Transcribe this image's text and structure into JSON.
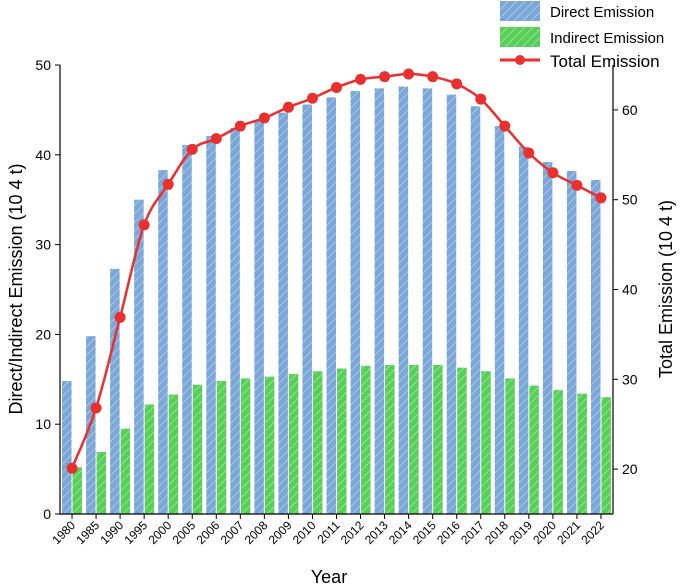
{
  "chart_data": {
    "type": "bar",
    "title": "",
    "categories": [
      "1980",
      "1985",
      "1990",
      "1995",
      "2000",
      "2005",
      "2006",
      "2007",
      "2008",
      "2009",
      "2010",
      "2011",
      "2012",
      "2013",
      "2014",
      "2015",
      "2016",
      "2017",
      "2018",
      "2019",
      "2020",
      "2021",
      "2022"
    ],
    "series": [
      {
        "name": "Direct Emission",
        "type": "bar",
        "axis": "left",
        "color": "#7aa6d8",
        "values": [
          14.8,
          19.8,
          27.3,
          35.0,
          38.3,
          41.1,
          42.1,
          43.0,
          43.9,
          44.7,
          45.6,
          46.4,
          47.1,
          47.4,
          47.6,
          47.4,
          46.7,
          45.4,
          43.2,
          40.9,
          39.2,
          38.2,
          37.2
        ]
      },
      {
        "name": "Indirect Emission",
        "type": "bar",
        "axis": "left",
        "color": "#58d058",
        "values": [
          5.2,
          6.9,
          9.5,
          12.2,
          13.3,
          14.4,
          14.8,
          15.1,
          15.3,
          15.6,
          15.9,
          16.2,
          16.5,
          16.6,
          16.6,
          16.6,
          16.3,
          15.9,
          15.1,
          14.3,
          13.8,
          13.4,
          13.0
        ]
      },
      {
        "name": "Total Emission",
        "type": "line",
        "axis": "right",
        "color": "#e8302f",
        "values": [
          20.1,
          26.8,
          36.9,
          47.2,
          51.7,
          55.6,
          56.8,
          58.2,
          59.1,
          60.3,
          61.3,
          62.5,
          63.4,
          63.7,
          64.0,
          63.7,
          62.9,
          61.2,
          58.2,
          55.2,
          53.0,
          51.6,
          50.2
        ]
      }
    ],
    "xlabel": "Year",
    "ylabel": "Direct/Indirect Emission (10 4 t)",
    "y2label": "Total Emission (10 4 t)",
    "ylim": [
      0,
      50
    ],
    "y2lim": [
      15,
      65
    ],
    "yticks": [
      0,
      10,
      20,
      30,
      40,
      50
    ],
    "y2ticks": [
      20,
      30,
      40,
      50,
      60
    ],
    "legend_position": "top-right",
    "grid": false
  }
}
